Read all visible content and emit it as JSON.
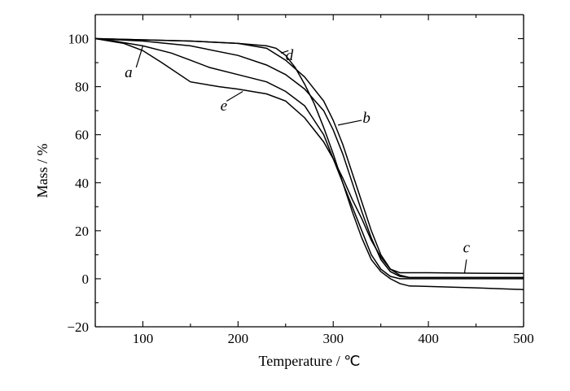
{
  "chart_data": {
    "type": "line",
    "xlabel": "Temperature / ℃",
    "ylabel": "Mass / %",
    "xlim": [
      50,
      500
    ],
    "ylim": [
      -20,
      110
    ],
    "x_ticks": [
      100,
      200,
      300,
      400,
      500
    ],
    "y_ticks": [
      -20,
      0,
      20,
      40,
      60,
      80,
      100
    ],
    "x_tick_labels": [
      "100",
      "200",
      "300",
      "400",
      "500"
    ],
    "y_tick_labels": [
      "−20",
      "0",
      "20",
      "40",
      "60",
      "80",
      "100"
    ],
    "series": [
      {
        "name": "a",
        "x": [
          50,
          70,
          100,
          130,
          150,
          170,
          200,
          230,
          250,
          270,
          290,
          300,
          310,
          320,
          330,
          340,
          350,
          360,
          370,
          380,
          400,
          450,
          500
        ],
        "y": [
          100,
          99,
          97,
          94,
          91,
          88,
          85,
          82,
          78,
          72,
          60,
          50,
          40,
          30,
          20,
          10,
          4,
          1,
          0,
          0,
          0,
          0,
          0
        ]
      },
      {
        "name": "b",
        "x": [
          50,
          100,
          150,
          200,
          230,
          250,
          270,
          290,
          300,
          310,
          320,
          330,
          340,
          350,
          360,
          370,
          380,
          400,
          450,
          500
        ],
        "y": [
          100,
          99,
          97,
          93,
          89,
          85,
          79,
          70,
          62,
          52,
          40,
          28,
          17,
          8,
          3,
          1,
          0.5,
          0.5,
          0.5,
          0.5
        ]
      },
      {
        "name": "c",
        "x": [
          50,
          100,
          150,
          200,
          230,
          250,
          270,
          290,
          300,
          310,
          320,
          330,
          340,
          350,
          360,
          370,
          380,
          400,
          450,
          500
        ],
        "y": [
          100,
          99.5,
          99,
          98,
          96,
          91,
          84,
          74,
          66,
          56,
          44,
          32,
          20,
          10,
          4,
          2.5,
          2.5,
          2.5,
          2.3,
          2.2
        ]
      },
      {
        "name": "d",
        "x": [
          50,
          100,
          150,
          200,
          230,
          240,
          250,
          260,
          270,
          280,
          290,
          300,
          310,
          320,
          330,
          340,
          350,
          360,
          370,
          380,
          400,
          450,
          500
        ],
        "y": [
          100,
          99.5,
          99,
          98,
          97,
          96,
          93,
          88,
          81,
          73,
          63,
          52,
          40,
          28,
          17,
          8,
          3,
          0,
          -2,
          -3,
          -3.2,
          -3.8,
          -4.5
        ]
      },
      {
        "name": "e",
        "x": [
          50,
          80,
          100,
          120,
          150,
          180,
          200,
          230,
          250,
          270,
          290,
          300,
          310,
          320,
          330,
          340,
          350,
          360,
          370,
          380,
          400,
          450,
          500
        ],
        "y": [
          100,
          98,
          95,
          90,
          82,
          80,
          79,
          77,
          74,
          67,
          57,
          50,
          42,
          33,
          25,
          16,
          9,
          4,
          1.5,
          0.5,
          0.5,
          0.5,
          0.5
        ]
      }
    ],
    "grid": false,
    "legend": "none (curves labeled inline a–e)"
  }
}
